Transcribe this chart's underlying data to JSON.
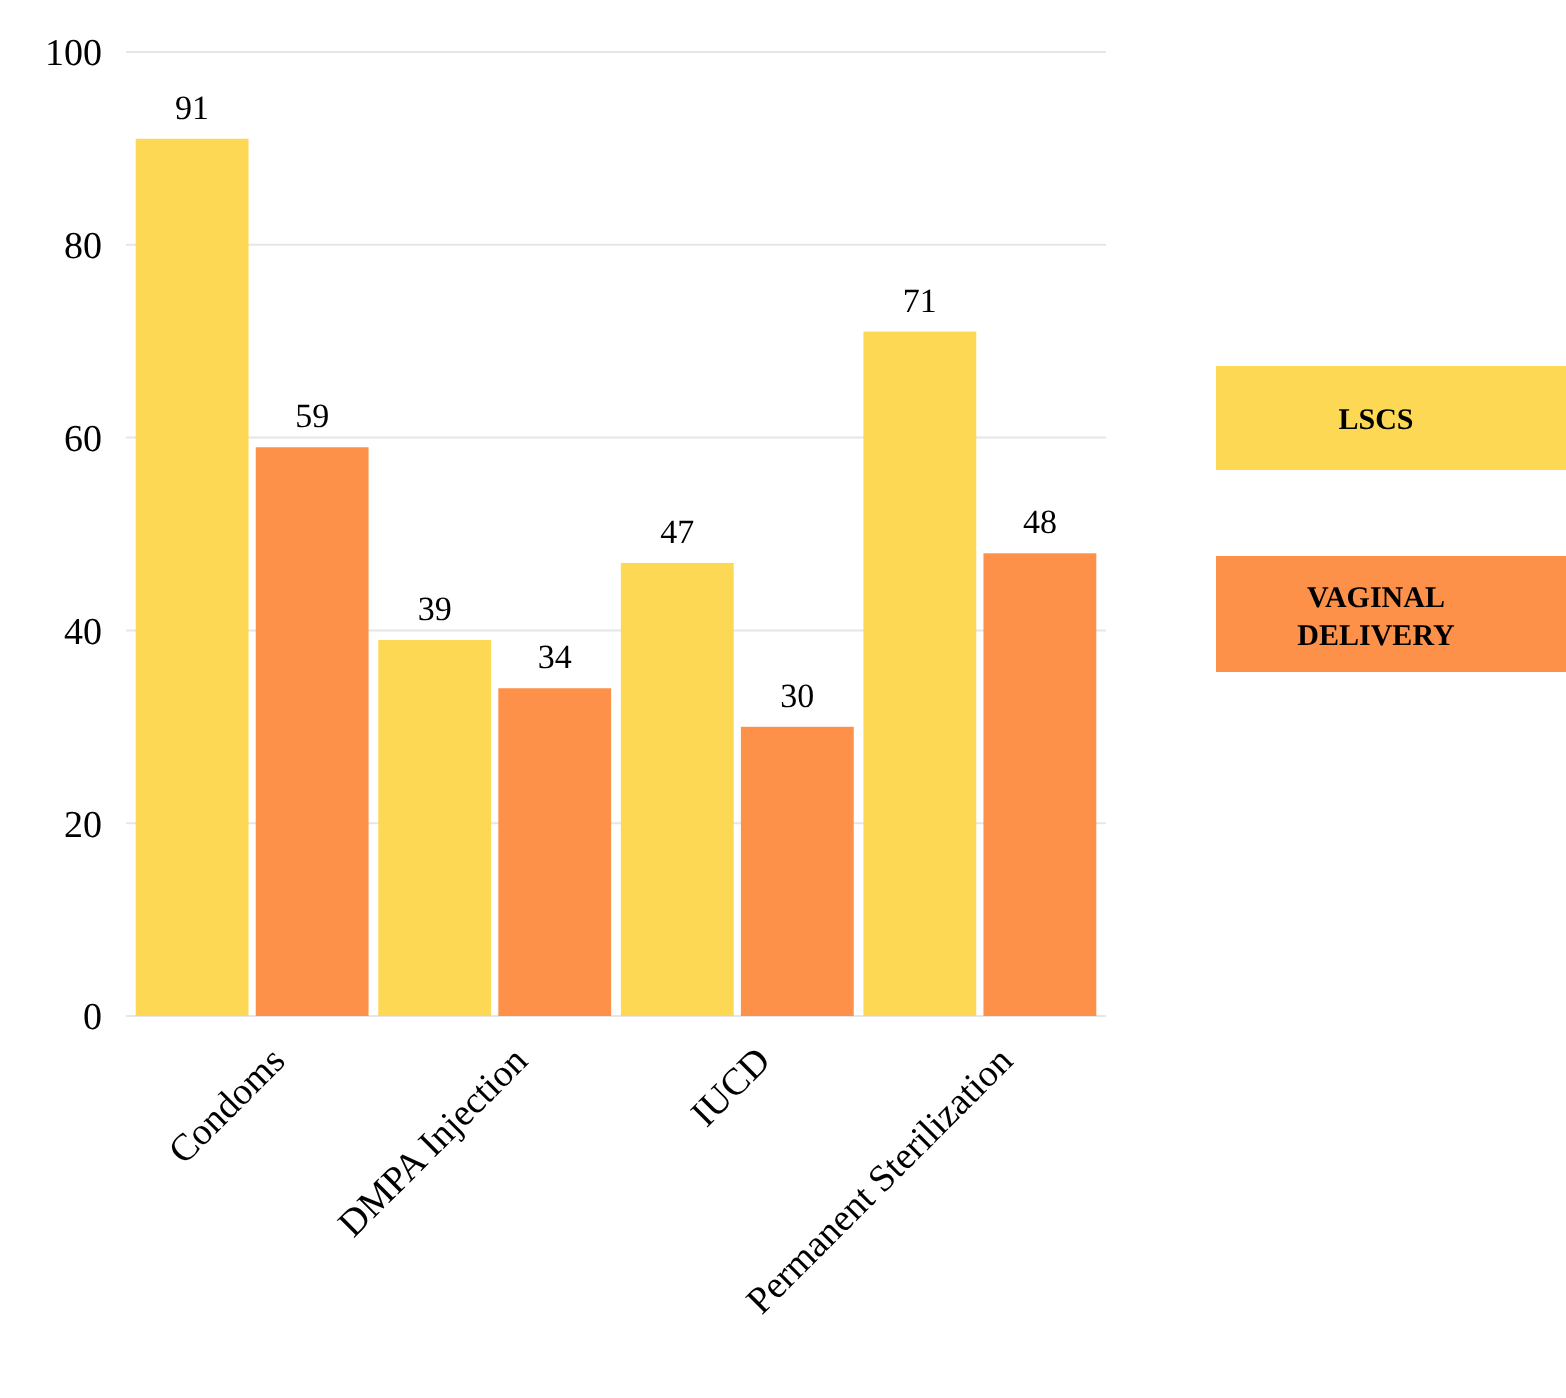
{
  "chart_data": {
    "type": "bar",
    "categories": [
      "Condoms",
      "DMPA Injection",
      "IUCD",
      "Permanent Sterilization"
    ],
    "series": [
      {
        "name": "LSCS",
        "color": "#fdd855",
        "values": [
          91,
          39,
          47,
          71
        ]
      },
      {
        "name": "VAGINAL DELIVERY",
        "color": "#fd914a",
        "values": [
          59,
          34,
          30,
          48
        ]
      }
    ],
    "ylim": [
      0,
      100
    ],
    "yticks": [
      0,
      20,
      40,
      60,
      80,
      100
    ],
    "grid": "y",
    "legend": "right",
    "data_labels": true
  }
}
